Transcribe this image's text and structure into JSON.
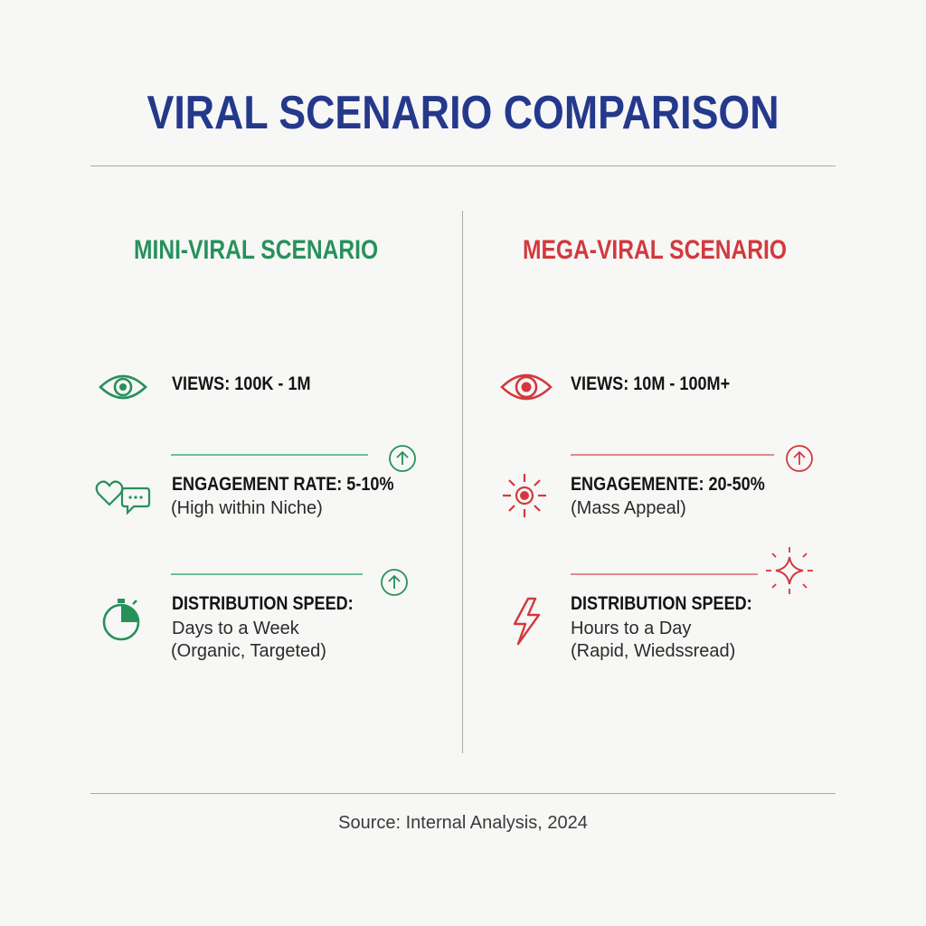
{
  "title": "VIRAL SCENARIO COMPARISON",
  "colors": {
    "title": "#24398c",
    "mini": "#27915a",
    "mega": "#d2393d"
  },
  "mini": {
    "heading": "MINI-VIRAL SCENARIO",
    "views_label": "VIEWS: 100K - 1M",
    "engagement_label": "ENGAGEMENT RATE: 5-10%",
    "engagement_note": "(High within Niche)",
    "speed_label": "DISTRIBUTION SPEED:",
    "speed_line1": "Days to a Week",
    "speed_line2": "(Organic, Targeted)",
    "icons": [
      "eye-icon",
      "heart-chat-icon",
      "stopwatch-icon",
      "arrow-up-icon"
    ]
  },
  "mega": {
    "heading": "MEGA-VIRAL SCENARIO",
    "views_label": "VIEWS: 10M - 100M+",
    "engagement_label": "ENGAGEMENTE: 20-50%",
    "engagement_note": "(Mass Appeal)",
    "speed_label": "DISTRIBUTION SPEED:",
    "speed_line1": "Hours to a Day",
    "speed_line2": "(Rapid, Wiedssread)",
    "icons": [
      "eye-icon",
      "burst-icon",
      "lightning-icon",
      "arrow-up-icon",
      "sparkle-icon"
    ]
  },
  "source": "Source: Internal Analysis, 2024"
}
